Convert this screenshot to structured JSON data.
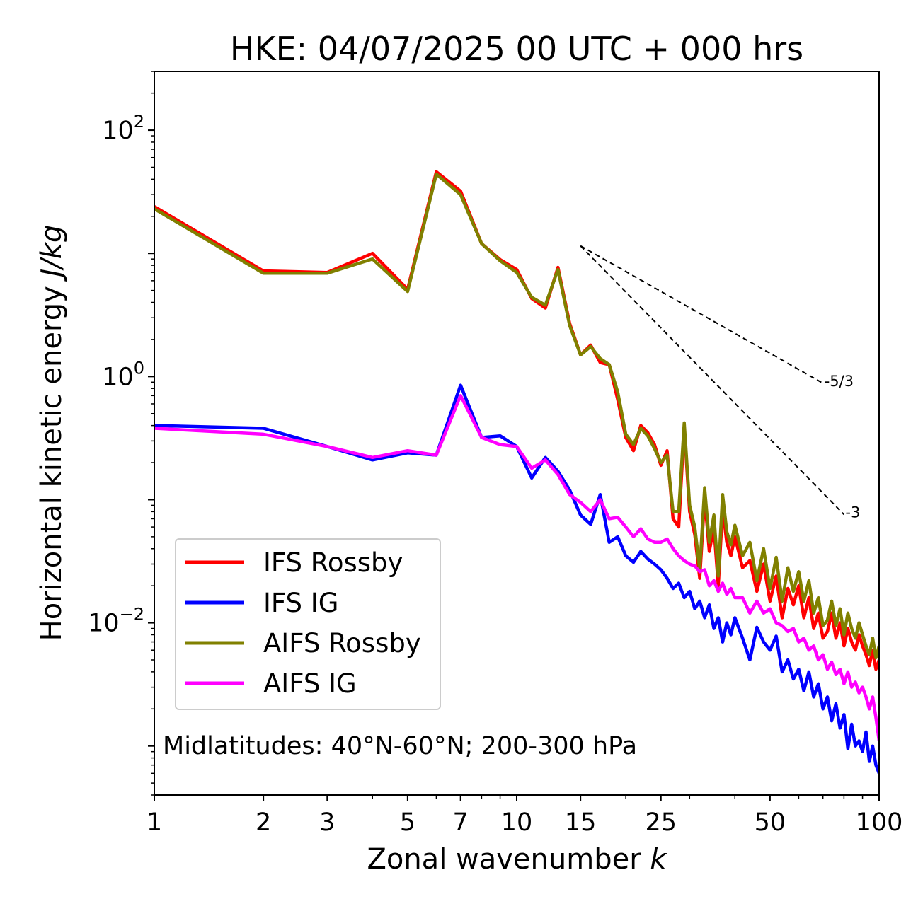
{
  "chart_data": {
    "type": "line",
    "title": "HKE: 04/07/2025 00 UTC + 000 hrs",
    "xlabel_text": "Zonal wavenumber ",
    "xlabel_var": "k",
    "ylabel_text": "Horizontal kinetic energy ",
    "ylabel_unit": "J/kg",
    "xscale": "log",
    "yscale": "log",
    "xlim": [
      1,
      100
    ],
    "ylim": [
      0.0004,
      300
    ],
    "x_ticks": [
      {
        "value": 1,
        "label": "1"
      },
      {
        "value": 2,
        "label": "2"
      },
      {
        "value": 3,
        "label": "3"
      },
      {
        "value": 5,
        "label": "5"
      },
      {
        "value": 7,
        "label": "7"
      },
      {
        "value": 10,
        "label": "10"
      },
      {
        "value": 15,
        "label": "15"
      },
      {
        "value": 25,
        "label": "25"
      },
      {
        "value": 50,
        "label": "50"
      },
      {
        "value": 100,
        "label": "100"
      }
    ],
    "y_ticks": [
      {
        "value": 100,
        "mantissa": "10",
        "exponent": "2"
      },
      {
        "value": 1,
        "mantissa": "10",
        "exponent": "0"
      },
      {
        "value": 0.01,
        "mantissa": "10",
        "exponent": "−2"
      }
    ],
    "annotation": "Midlatitudes: 40°N-60°N; 200-300 hPa",
    "legend_position": "lower-left",
    "reference_slopes": [
      {
        "label": "-5/3",
        "slope": -1.6667,
        "x_start": 15,
        "x_end": 70,
        "y_start": 11.5
      },
      {
        "label": "-3",
        "slope": -3,
        "x_start": 15,
        "x_end": 80,
        "y_start": 11.5
      }
    ],
    "series": [
      {
        "name": "IFS Rossby",
        "color": "#ff0000",
        "x": [
          1,
          2,
          3,
          4,
          5,
          6,
          7,
          8,
          9,
          10,
          11,
          12,
          13,
          14,
          15,
          16,
          17,
          18,
          19,
          20,
          21,
          22,
          23,
          24,
          25,
          26,
          27,
          28,
          29,
          30,
          31,
          32,
          33,
          34,
          35,
          36,
          37,
          38,
          39,
          40,
          42,
          44,
          46,
          48,
          50,
          52,
          54,
          56,
          58,
          60,
          62,
          64,
          66,
          68,
          70,
          72,
          74,
          76,
          78,
          80,
          82,
          84,
          86,
          88,
          90,
          92,
          94,
          96,
          98,
          100
        ],
        "y": [
          24,
          7.2,
          7.0,
          10.0,
          5.1,
          46,
          32,
          12,
          8.9,
          7.4,
          4.3,
          3.6,
          7.7,
          2.7,
          1.5,
          1.8,
          1.3,
          1.25,
          0.65,
          0.32,
          0.25,
          0.4,
          0.35,
          0.28,
          0.19,
          0.25,
          0.07,
          0.06,
          0.39,
          0.08,
          0.052,
          0.023,
          0.105,
          0.038,
          0.06,
          0.02,
          0.085,
          0.045,
          0.035,
          0.05,
          0.028,
          0.032,
          0.018,
          0.03,
          0.015,
          0.024,
          0.011,
          0.019,
          0.014,
          0.02,
          0.011,
          0.016,
          0.009,
          0.012,
          0.0075,
          0.0085,
          0.012,
          0.0075,
          0.01,
          0.0065,
          0.009,
          0.007,
          0.006,
          0.008,
          0.0065,
          0.0055,
          0.0045,
          0.006,
          0.0042,
          0.005
        ]
      },
      {
        "name": "IFS IG",
        "color": "#0000ff",
        "x": [
          1,
          2,
          3,
          4,
          5,
          6,
          7,
          8,
          9,
          10,
          11,
          12,
          13,
          14,
          15,
          16,
          17,
          18,
          19,
          20,
          21,
          22,
          23,
          24,
          25,
          26,
          27,
          28,
          29,
          30,
          31,
          32,
          33,
          34,
          35,
          36,
          37,
          38,
          39,
          40,
          42,
          44,
          46,
          48,
          50,
          52,
          54,
          56,
          58,
          60,
          62,
          64,
          66,
          68,
          70,
          72,
          74,
          76,
          78,
          80,
          82,
          84,
          86,
          88,
          90,
          92,
          94,
          96,
          98,
          100
        ],
        "y": [
          0.4,
          0.38,
          0.27,
          0.21,
          0.24,
          0.23,
          0.85,
          0.32,
          0.33,
          0.27,
          0.15,
          0.22,
          0.17,
          0.12,
          0.075,
          0.063,
          0.11,
          0.045,
          0.05,
          0.035,
          0.031,
          0.038,
          0.033,
          0.03,
          0.027,
          0.023,
          0.019,
          0.021,
          0.016,
          0.018,
          0.013,
          0.015,
          0.011,
          0.014,
          0.009,
          0.011,
          0.007,
          0.01,
          0.008,
          0.011,
          0.0075,
          0.005,
          0.0092,
          0.007,
          0.006,
          0.0078,
          0.004,
          0.005,
          0.0035,
          0.0042,
          0.0028,
          0.004,
          0.0025,
          0.0032,
          0.002,
          0.0025,
          0.0016,
          0.0022,
          0.0014,
          0.0018,
          0.00095,
          0.0015,
          0.001,
          0.0011,
          0.0009,
          0.0013,
          0.00075,
          0.001,
          0.0007,
          0.0006
        ]
      },
      {
        "name": "AIFS Rossby",
        "color": "#808000",
        "x": [
          1,
          2,
          3,
          4,
          5,
          6,
          7,
          8,
          9,
          10,
          11,
          12,
          13,
          14,
          15,
          16,
          17,
          18,
          19,
          20,
          21,
          22,
          23,
          24,
          25,
          26,
          27,
          28,
          29,
          30,
          31,
          32,
          33,
          34,
          35,
          36,
          37,
          38,
          39,
          40,
          42,
          44,
          46,
          48,
          50,
          52,
          54,
          56,
          58,
          60,
          62,
          64,
          66,
          68,
          70,
          72,
          74,
          76,
          78,
          80,
          82,
          84,
          86,
          88,
          90,
          92,
          94,
          96,
          98,
          100
        ],
        "y": [
          23,
          6.9,
          6.9,
          9.0,
          4.9,
          44,
          30,
          12,
          8.7,
          7.0,
          4.4,
          3.8,
          7.4,
          2.6,
          1.5,
          1.75,
          1.4,
          1.25,
          0.75,
          0.34,
          0.28,
          0.38,
          0.33,
          0.26,
          0.2,
          0.23,
          0.08,
          0.08,
          0.42,
          0.09,
          0.06,
          0.027,
          0.125,
          0.045,
          0.075,
          0.024,
          0.11,
          0.055,
          0.043,
          0.062,
          0.035,
          0.045,
          0.022,
          0.04,
          0.019,
          0.034,
          0.015,
          0.028,
          0.018,
          0.026,
          0.015,
          0.022,
          0.012,
          0.016,
          0.0095,
          0.0105,
          0.015,
          0.0095,
          0.013,
          0.008,
          0.012,
          0.009,
          0.0075,
          0.01,
          0.008,
          0.0065,
          0.0055,
          0.0075,
          0.0052,
          0.0065
        ]
      },
      {
        "name": "AIFS IG",
        "color": "#ff00ff",
        "x": [
          1,
          2,
          3,
          4,
          5,
          6,
          7,
          8,
          9,
          10,
          11,
          12,
          13,
          14,
          15,
          16,
          17,
          18,
          19,
          20,
          21,
          22,
          23,
          24,
          25,
          26,
          27,
          28,
          29,
          30,
          31,
          32,
          33,
          34,
          35,
          36,
          37,
          38,
          39,
          40,
          42,
          44,
          46,
          48,
          50,
          52,
          54,
          56,
          58,
          60,
          62,
          64,
          66,
          68,
          70,
          72,
          74,
          76,
          78,
          80,
          82,
          84,
          86,
          88,
          90,
          92,
          94,
          96,
          98,
          100
        ],
        "y": [
          0.38,
          0.34,
          0.27,
          0.22,
          0.25,
          0.23,
          0.7,
          0.32,
          0.28,
          0.27,
          0.18,
          0.21,
          0.16,
          0.11,
          0.095,
          0.08,
          0.1,
          0.07,
          0.072,
          0.06,
          0.05,
          0.058,
          0.048,
          0.045,
          0.045,
          0.048,
          0.04,
          0.035,
          0.032,
          0.03,
          0.029,
          0.026,
          0.027,
          0.02,
          0.022,
          0.018,
          0.021,
          0.017,
          0.019,
          0.016,
          0.016,
          0.012,
          0.015,
          0.012,
          0.013,
          0.01,
          0.0095,
          0.0085,
          0.009,
          0.007,
          0.0075,
          0.006,
          0.0065,
          0.005,
          0.0055,
          0.0042,
          0.0048,
          0.0038,
          0.0042,
          0.0032,
          0.004,
          0.003,
          0.0033,
          0.0027,
          0.003,
          0.0025,
          0.002,
          0.0025,
          0.0017,
          0.0011
        ]
      }
    ]
  }
}
